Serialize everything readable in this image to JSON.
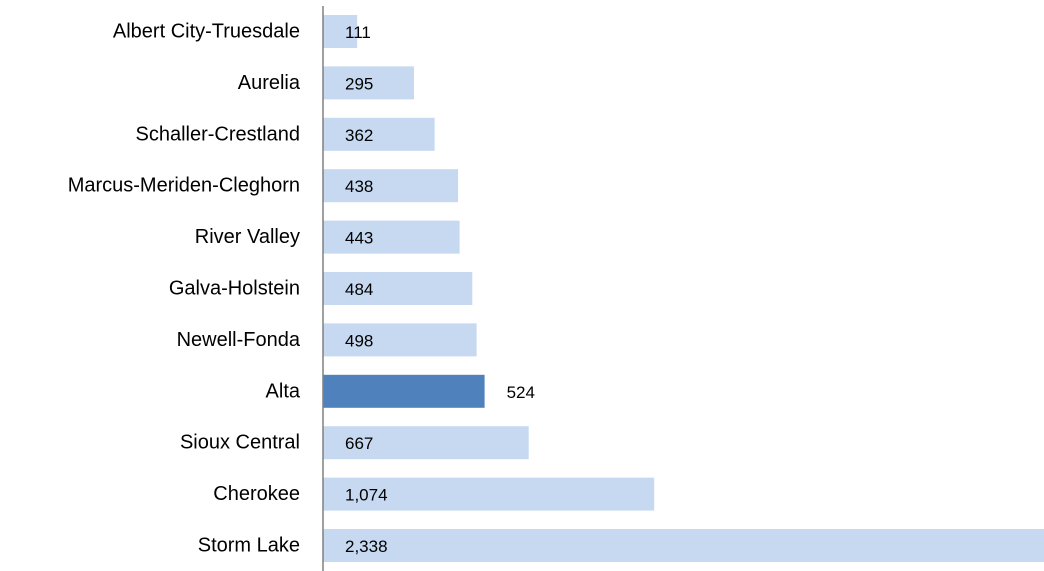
{
  "chart_data": {
    "type": "bar",
    "orientation": "horizontal",
    "title": "",
    "xlabel": "",
    "ylabel": "",
    "categories": [
      "Albert City-Truesdale",
      "Aurelia",
      "Schaller-Crestland",
      "Marcus-Meriden-Cleghorn",
      "River Valley",
      "Galva-Holstein",
      "Newell-Fonda",
      "Alta",
      "Sioux Central",
      "Cherokee",
      "Storm Lake"
    ],
    "values": [
      111,
      295,
      362,
      438,
      443,
      484,
      498,
      524,
      667,
      1074,
      2338
    ],
    "value_labels": [
      "111",
      "295",
      "362",
      "438",
      "443",
      "484",
      "498",
      "524",
      "667",
      "1,074",
      "2,338"
    ],
    "highlighted_category": "Alta",
    "xlim": [
      0,
      2338
    ],
    "grid": false,
    "legend": "none",
    "colors": {
      "bar": "#c6d9f1",
      "highlight": "#4f81bd",
      "axis": "#808080",
      "text": "#000000"
    }
  }
}
